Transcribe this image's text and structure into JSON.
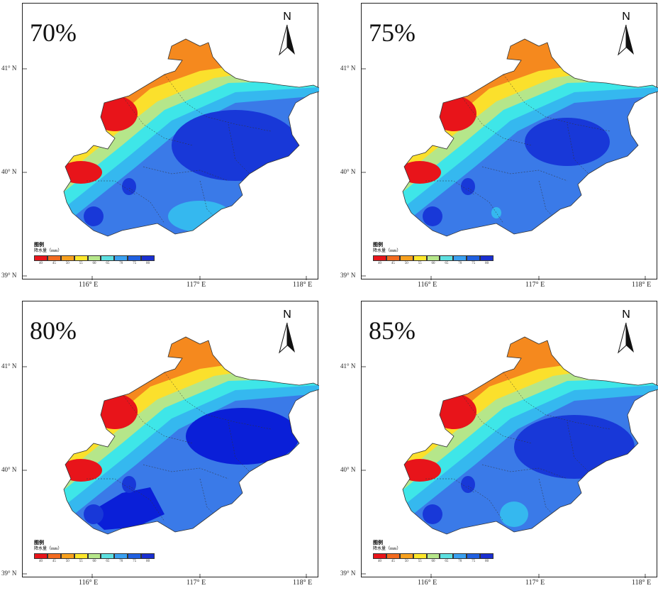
{
  "panels": [
    {
      "label": "70%",
      "variant": 0
    },
    {
      "label": "75%",
      "variant": 1
    },
    {
      "label": "80%",
      "variant": 2
    },
    {
      "label": "85%",
      "variant": 3
    }
  ],
  "north_arrow": {
    "letter": "N",
    "icon": "north-arrow-icon"
  },
  "legend": {
    "title": "图例",
    "unit_label": "降水量（mm）",
    "colors": [
      "#e8141a",
      "#f26a1f",
      "#f7a01e",
      "#fde62b",
      "#b5e68a",
      "#5de0e0",
      "#3aa0f0",
      "#2060e0",
      "#1a2fd0"
    ],
    "tick_labels": [
      "40",
      "45",
      "50",
      "55",
      "60",
      "65",
      "70",
      "75",
      "80"
    ]
  },
  "latitude_labels": [
    "41° N",
    "40° N",
    "39° N"
  ],
  "longitude_labels": [
    "116° E",
    "117° E",
    "118° E"
  ],
  "precip_colors": {
    "red": "#e8141a",
    "orange": "#f5891e",
    "yellow": "#fbe02c",
    "light_green": "#b5e68a",
    "cyan": "#3ee6e8",
    "sky": "#35b8ef",
    "medium_blue": "#3a7ae8",
    "dark_blue": "#1838d8",
    "navy": "#0a1fd8"
  }
}
